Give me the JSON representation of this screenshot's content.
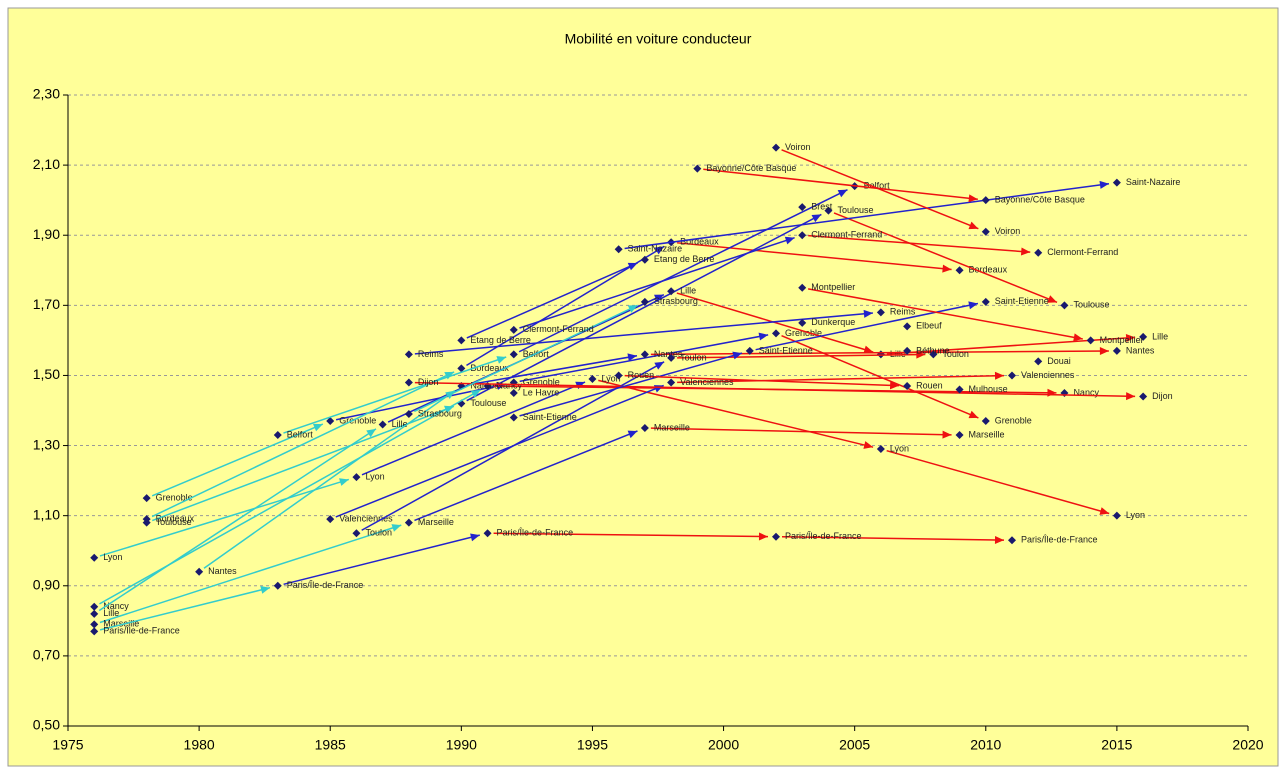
{
  "chart_data": {
    "type": "scatter",
    "title": "Mobilité en voiture conducteur",
    "xlim": [
      1975,
      2020
    ],
    "xticks": [
      1975,
      1980,
      1985,
      1990,
      1995,
      2000,
      2005,
      2010,
      2015,
      2020
    ],
    "ylim": [
      0.5,
      2.3
    ],
    "yticks": [
      {
        "value": 0.5,
        "label": "0,50"
      },
      {
        "value": 0.7,
        "label": "0,70"
      },
      {
        "value": 0.9,
        "label": "0,90"
      },
      {
        "value": 1.1,
        "label": "1,10"
      },
      {
        "value": 1.3,
        "label": "1,30"
      },
      {
        "value": 1.5,
        "label": "1,50"
      },
      {
        "value": 1.7,
        "label": "1,70"
      },
      {
        "value": 1.9,
        "label": "1,90"
      },
      {
        "value": 2.1,
        "label": "2,10"
      },
      {
        "value": 2.3,
        "label": "2,30"
      }
    ],
    "grid": true,
    "point_color": "#1a1a6e",
    "series": [
      {
        "name": "Lyon",
        "x": [
          1976,
          1986,
          1995,
          2006,
          2015
        ],
        "values": [
          0.98,
          1.21,
          1.49,
          1.29,
          1.1
        ],
        "arrow_colors": [
          "#33cccc",
          "#2222cc",
          "#ee1111",
          "#ee1111"
        ]
      },
      {
        "name": "Grenoble",
        "x": [
          1978,
          1985,
          1992,
          2002,
          2010
        ],
        "values": [
          1.15,
          1.37,
          1.48,
          1.62,
          1.37
        ],
        "arrow_colors": [
          "#33cccc",
          "#2222cc",
          "#2222cc",
          "#ee1111"
        ]
      },
      {
        "name": "Bordeaux",
        "x": [
          1978,
          1990,
          1998,
          2009
        ],
        "values": [
          1.09,
          1.52,
          1.88,
          1.8
        ],
        "arrow_colors": [
          "#33cccc",
          "#2222cc",
          "#ee1111"
        ]
      },
      {
        "name": "Toulouse",
        "x": [
          1978,
          1990,
          2004,
          2013
        ],
        "values": [
          1.08,
          1.42,
          1.97,
          1.7
        ],
        "arrow_colors": [
          "#33cccc",
          "#2222cc",
          "#ee1111"
        ]
      },
      {
        "name": "Nancy",
        "x": [
          1976,
          1991,
          2013
        ],
        "values": [
          0.84,
          1.47,
          1.45
        ],
        "arrow_colors": [
          "#33cccc",
          "#ee1111"
        ]
      },
      {
        "name": "Lille",
        "x": [
          1976,
          1987,
          1998,
          2006,
          2016
        ],
        "values": [
          0.82,
          1.36,
          1.74,
          1.56,
          1.61
        ],
        "arrow_colors": [
          "#33cccc",
          "#2222cc",
          "#ee1111",
          "#ee1111"
        ]
      },
      {
        "name": "Marseille",
        "x": [
          1976,
          1988,
          1997,
          2009
        ],
        "values": [
          0.79,
          1.08,
          1.35,
          1.33
        ],
        "arrow_colors": [
          "#33cccc",
          "#2222cc",
          "#ee1111"
        ]
      },
      {
        "name": "Paris/Île-de-France",
        "x": [
          1976,
          1983,
          1991,
          2002,
          2011
        ],
        "values": [
          0.77,
          0.9,
          1.05,
          1.04,
          1.03
        ],
        "arrow_colors": [
          "#33cccc",
          "#2222cc",
          "#ee1111",
          "#ee1111"
        ]
      },
      {
        "name": "Nantes",
        "x": [
          1980,
          1990,
          1997,
          2015
        ],
        "values": [
          0.94,
          1.47,
          1.56,
          1.57
        ],
        "arrow_colors": [
          "#33cccc",
          "#2222cc",
          "#ee1111"
        ]
      },
      {
        "name": "Belfort",
        "x": [
          1983,
          1992,
          2005
        ],
        "values": [
          1.33,
          1.56,
          2.04
        ],
        "arrow_colors": [
          "#33cccc",
          "#2222cc"
        ]
      },
      {
        "name": "Valenciennes",
        "x": [
          1985,
          1998,
          2011
        ],
        "values": [
          1.09,
          1.48,
          1.5
        ],
        "arrow_colors": [
          "#2222cc",
          "#ee1111"
        ]
      },
      {
        "name": "Toulon",
        "x": [
          1986,
          1998,
          2008
        ],
        "values": [
          1.05,
          1.55,
          1.56
        ],
        "arrow_colors": [
          "#2222cc",
          "#ee1111"
        ]
      },
      {
        "name": "Reims",
        "x": [
          1988,
          2006
        ],
        "values": [
          1.56,
          1.68
        ],
        "arrow_colors": [
          "#2222cc"
        ]
      },
      {
        "name": "Dijon",
        "x": [
          1988,
          2016
        ],
        "values": [
          1.48,
          1.44
        ],
        "arrow_colors": [
          "#ee1111"
        ]
      },
      {
        "name": "Strasbourg",
        "x": [
          1988,
          1997
        ],
        "values": [
          1.39,
          1.71
        ],
        "arrow_colors": [
          "#33cccc"
        ]
      },
      {
        "name": "Saint-Etienne",
        "x": [
          1992,
          2001,
          2010
        ],
        "values": [
          1.38,
          1.57,
          1.71
        ],
        "arrow_colors": [
          "#2222cc",
          "#2222cc"
        ]
      },
      {
        "name": "Rouen",
        "x": [
          1996,
          2007
        ],
        "values": [
          1.5,
          1.47
        ],
        "arrow_colors": [
          "#ee1111"
        ]
      },
      {
        "name": "Etang de Berre",
        "x": [
          1990,
          1997
        ],
        "values": [
          1.6,
          1.83
        ],
        "arrow_colors": [
          "#2222cc"
        ]
      },
      {
        "name": "Saint-Nazaire",
        "x": [
          1996,
          2015
        ],
        "values": [
          1.86,
          2.05
        ],
        "arrow_colors": [
          "#2222cc"
        ]
      },
      {
        "name": "Clermont-Ferrand",
        "x": [
          1992,
          2003,
          2012
        ],
        "values": [
          1.63,
          1.9,
          1.85
        ],
        "arrow_colors": [
          "#2222cc",
          "#ee1111"
        ]
      },
      {
        "name": "Brest",
        "x": [
          2003
        ],
        "values": [
          1.98
        ],
        "arrow_colors": []
      },
      {
        "name": "Voiron",
        "x": [
          2002,
          2010
        ],
        "values": [
          2.15,
          1.91
        ],
        "arrow_colors": [
          "#ee1111"
        ]
      },
      {
        "name": "Bayonne/Côte Basque",
        "x": [
          1999,
          2010
        ],
        "values": [
          2.09,
          2.0
        ],
        "arrow_colors": [
          "#ee1111"
        ]
      },
      {
        "name": "Montpellier",
        "x": [
          2003,
          2014
        ],
        "values": [
          1.75,
          1.6
        ],
        "arrow_colors": [
          "#ee1111"
        ]
      },
      {
        "name": "Dunkerque",
        "x": [
          2003
        ],
        "values": [
          1.65
        ],
        "arrow_colors": []
      },
      {
        "name": "Elbeuf",
        "x": [
          2007
        ],
        "values": [
          1.64
        ],
        "arrow_colors": []
      },
      {
        "name": "Douai",
        "x": [
          2012
        ],
        "values": [
          1.54
        ],
        "arrow_colors": []
      },
      {
        "name": "Mulhouse",
        "x": [
          2009
        ],
        "values": [
          1.46
        ],
        "arrow_colors": []
      },
      {
        "name": "Béthune",
        "x": [
          2007
        ],
        "values": [
          1.57
        ],
        "arrow_colors": []
      },
      {
        "name": "Le Havre",
        "x": [
          1992
        ],
        "values": [
          1.45
        ],
        "arrow_colors": []
      }
    ]
  }
}
